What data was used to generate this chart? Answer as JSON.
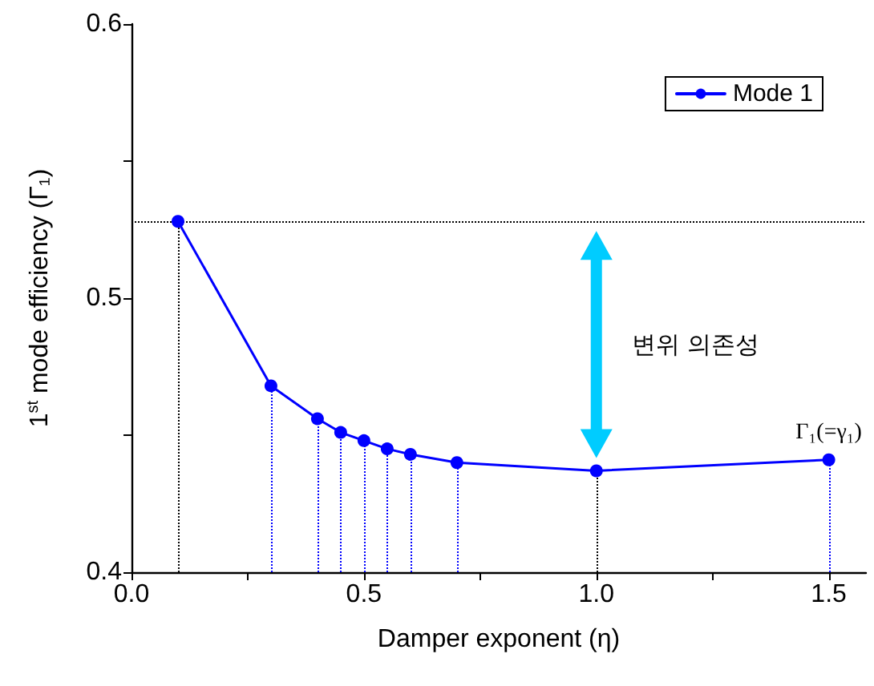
{
  "chart_data": {
    "type": "line",
    "xlabel": "Damper exponent (η)",
    "ylabel": "1$^{st}$ mode efficiency (Γ₁)",
    "x": [
      0.1,
      0.3,
      0.4,
      0.45,
      0.5,
      0.55,
      0.6,
      0.7,
      1.0,
      1.5
    ],
    "series": [
      {
        "name": "Mode 1",
        "color": "#0000ff",
        "values": [
          0.528,
          0.468,
          0.456,
          0.451,
          0.448,
          0.445,
          0.443,
          0.44,
          0.437,
          0.441
        ]
      }
    ],
    "xlim": [
      0,
      1.58
    ],
    "xticks": [
      {
        "value": 0,
        "label": "0.0"
      },
      {
        "value": 0.25,
        "label": null
      },
      {
        "value": 0.5,
        "label": "0.5"
      },
      {
        "value": 0.75,
        "label": null
      },
      {
        "value": 1.0,
        "label": "1.0"
      },
      {
        "value": 1.25,
        "label": null
      },
      {
        "value": 1.5,
        "label": "1.5"
      }
    ],
    "ylim": [
      0.4,
      0.6
    ],
    "yticks": [
      0.4,
      {
        "value": 0.45,
        "label": null
      },
      0.5,
      {
        "value": 0.55,
        "label": null
      },
      0.6
    ],
    "ref_lines": [
      {
        "axis": "y",
        "value": 0.528,
        "color": "#000000",
        "line_style": "dotted"
      },
      {
        "axis": "x",
        "value": 0.1,
        "color": "#000000",
        "line_style": "dotted"
      },
      {
        "axis": "x",
        "value": 0.3,
        "color": "#0000ff",
        "line_style": "dotted"
      },
      {
        "axis": "x",
        "value": 0.4,
        "color": "#0000ff",
        "line_style": "dotted"
      },
      {
        "axis": "x",
        "value": 0.45,
        "color": "#0000ff",
        "line_style": "dotted"
      },
      {
        "axis": "x",
        "value": 0.5,
        "color": "#0000ff",
        "line_style": "dotted"
      },
      {
        "axis": "x",
        "value": 0.55,
        "color": "#0000ff",
        "line_style": "dotted"
      },
      {
        "axis": "x",
        "value": 0.6,
        "color": "#0000ff",
        "line_style": "dotted"
      },
      {
        "axis": "x",
        "value": 0.7,
        "color": "#0000ff",
        "line_style": "dotted"
      },
      {
        "axis": "x",
        "value": 1.0,
        "color": "#000000",
        "line_style": "dotted"
      },
      {
        "axis": "x",
        "value": 1.5,
        "color": "#0000ff",
        "line_style": "dotted"
      }
    ],
    "annotations": [
      "변위 의존성",
      {
        "text": "Γ₁(=γ₁)",
        "x": 1.5,
        "y": 0.441
      }
    ],
    "grid": false,
    "legend": "top right",
    "marker": "circle",
    "line_style": "solid"
  }
}
